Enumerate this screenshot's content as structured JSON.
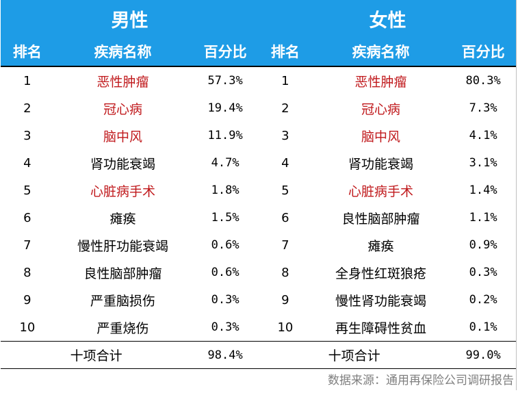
{
  "header": {
    "male": "男性",
    "female": "女性",
    "col_rank": "排名",
    "col_disease": "疾病名称",
    "col_pct": "百分比"
  },
  "colors": {
    "header_bg": "#1e9ce6",
    "highlight_red": "#c0191c",
    "source_gray": "#7f7f7f"
  },
  "rows": [
    {
      "rank": "1",
      "male": {
        "name": "恶性肿瘤",
        "pct": "57.3%",
        "red": true
      },
      "female": {
        "name": "恶性肿瘤",
        "pct": "80.3%",
        "red": true
      }
    },
    {
      "rank": "2",
      "male": {
        "name": "冠心病",
        "pct": "19.4%",
        "red": true
      },
      "female": {
        "name": "冠心病",
        "pct": "7.3%",
        "red": true
      }
    },
    {
      "rank": "3",
      "male": {
        "name": "脑中风",
        "pct": "11.9%",
        "red": true
      },
      "female": {
        "name": "脑中风",
        "pct": "4.1%",
        "red": true
      }
    },
    {
      "rank": "4",
      "male": {
        "name": "肾功能衰竭",
        "pct": "4.7%",
        "red": false
      },
      "female": {
        "name": "肾功能衰竭",
        "pct": "3.1%",
        "red": false
      }
    },
    {
      "rank": "5",
      "male": {
        "name": "心脏病手术",
        "pct": "1.8%",
        "red": true
      },
      "female": {
        "name": "心脏病手术",
        "pct": "1.4%",
        "red": true
      }
    },
    {
      "rank": "6",
      "male": {
        "name": "瘫痪",
        "pct": "1.5%",
        "red": false
      },
      "female": {
        "name": "良性脑部肿瘤",
        "pct": "1.1%",
        "red": false
      }
    },
    {
      "rank": "7",
      "male": {
        "name": "慢性肝功能衰竭",
        "pct": "0.6%",
        "red": false
      },
      "female": {
        "name": "瘫痪",
        "pct": "0.9%",
        "red": false
      }
    },
    {
      "rank": "8",
      "male": {
        "name": "良性脑部肿瘤",
        "pct": "0.6%",
        "red": false
      },
      "female": {
        "name": "全身性红斑狼疮",
        "pct": "0.3%",
        "red": false
      }
    },
    {
      "rank": "9",
      "male": {
        "name": "严重脑损伤",
        "pct": "0.3%",
        "red": false
      },
      "female": {
        "name": "慢性肾功能衰竭",
        "pct": "0.2%",
        "red": false
      }
    },
    {
      "rank": "10",
      "male": {
        "name": "严重烧伤",
        "pct": "0.3%",
        "red": false
      },
      "female": {
        "name": "再生障碍性贫血",
        "pct": "0.1%",
        "red": false
      }
    }
  ],
  "totals": {
    "label": "十项合计",
    "male_pct": "98.4%",
    "female_pct": "99.0%"
  },
  "source": "数据来源：通用再保险公司调研报告"
}
